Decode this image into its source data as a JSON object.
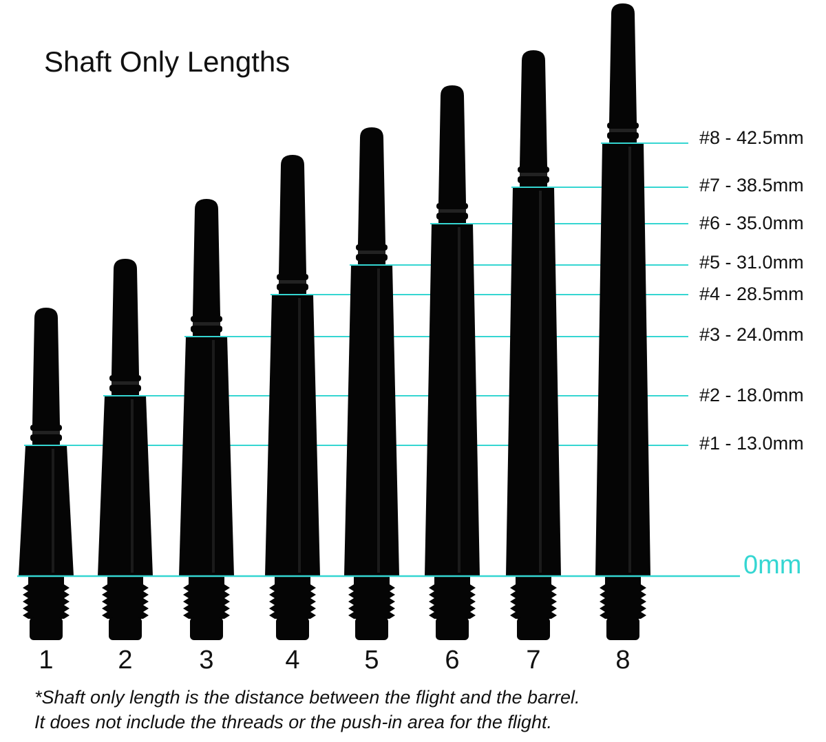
{
  "title": "Shaft Only Lengths",
  "accent_color": "#35d6d2",
  "shaft_color": "#050505",
  "zero_label": "0mm",
  "shafts": [
    {
      "number": "1",
      "label": "#1 - 13.0mm",
      "length_mm": 13.0
    },
    {
      "number": "2",
      "label": "#2 - 18.0mm",
      "length_mm": 18.0
    },
    {
      "number": "3",
      "label": "#3 - 24.0mm",
      "length_mm": 24.0
    },
    {
      "number": "4",
      "label": "#4 - 28.5mm",
      "length_mm": 28.5
    },
    {
      "number": "5",
      "label": "#5 - 31.0mm",
      "length_mm": 31.0
    },
    {
      "number": "6",
      "label": "#6 - 35.0mm",
      "length_mm": 35.0
    },
    {
      "number": "7",
      "label": "#7 - 38.5mm",
      "length_mm": 38.5
    },
    {
      "number": "8",
      "label": "#8 - 42.5mm",
      "length_mm": 42.5
    }
  ],
  "footnote": [
    "*Shaft only length is the distance between the flight and the barrel.",
    "It does not include the threads or the push-in area for the flight."
  ]
}
